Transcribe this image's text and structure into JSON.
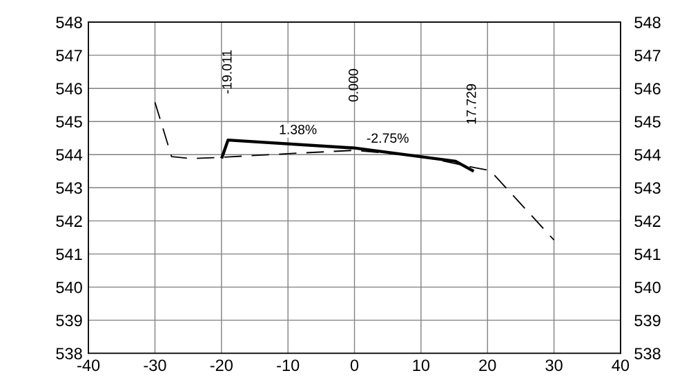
{
  "chart_data": {
    "type": "line",
    "series": [
      {
        "color": "#000000",
        "line_style": "dashed",
        "x": [
          -30,
          -27.5,
          -24.5,
          -20,
          -10,
          0,
          10,
          18.2,
          20.4,
          30
        ],
        "values": [
          545.58,
          543.94,
          543.88,
          543.92,
          544.03,
          544.13,
          543.95,
          543.6,
          543.52,
          541.42
        ]
      },
      {
        "color": "#000000",
        "line_style": "solid",
        "x": [
          -19.9,
          -19.011,
          0,
          15.2,
          17.729
        ],
        "values": [
          543.93,
          544.44,
          544.2,
          543.8,
          543.52
        ]
      }
    ],
    "xlim": [
      -40,
      40
    ],
    "xticks": [
      -40,
      -30,
      -20,
      -10,
      0,
      10,
      20,
      30,
      40
    ],
    "ylim": [
      538,
      548
    ],
    "yticks": [
      538,
      539,
      540,
      541,
      542,
      543,
      544,
      545,
      546,
      547,
      548
    ],
    "y2lim": [
      538,
      548
    ],
    "y2ticks": [
      538,
      539,
      540,
      541,
      542,
      543,
      544,
      545,
      546,
      547,
      548
    ],
    "grid": true,
    "annotations": [
      "-19.011",
      "0.000",
      "17.729",
      {
        "text": "1.38%",
        "x": -8.5,
        "y": 544.32
      },
      {
        "text": "-2.75%",
        "x": 5,
        "y": 544.06
      }
    ]
  }
}
